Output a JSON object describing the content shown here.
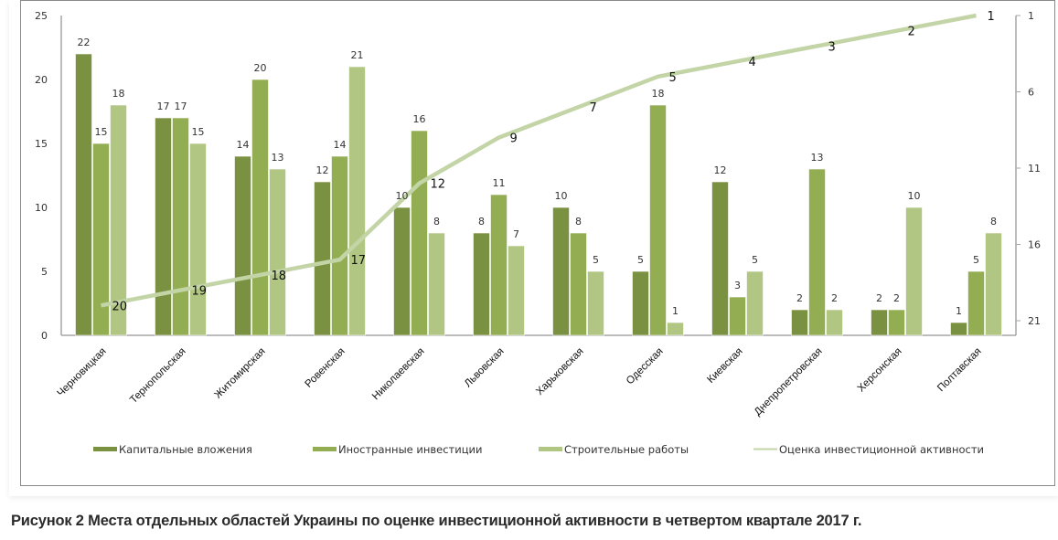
{
  "caption": "Рисунок 2 Места отдельных областей Украины по оценке инвестиционной активности в четвертом квартале 2017 г.",
  "colors": {
    "capital": "#7a9142",
    "foreign": "#93ae52",
    "construction": "#b0c682",
    "line": "#c3d4a6",
    "axis": "#a6a6a6"
  },
  "chart_data": {
    "type": "bar",
    "title": "",
    "categories": [
      "Черновицкая",
      "Тернопольская",
      "Житомирская",
      "Ровенская",
      "Николаевская",
      "Львовская",
      "Харьковская",
      "Одесская",
      "Киевская",
      "Днепропетровская",
      "Херсонская",
      "Полтавская"
    ],
    "series": [
      {
        "name": "Капитальные вложения",
        "type": "bar",
        "values": [
          22,
          17,
          14,
          12,
          10,
          8,
          10,
          5,
          12,
          2,
          2,
          1
        ]
      },
      {
        "name": "Иностранные инвестиции",
        "type": "bar",
        "values": [
          15,
          17,
          20,
          14,
          16,
          11,
          8,
          18,
          3,
          13,
          2,
          5
        ]
      },
      {
        "name": "Строительные работы",
        "type": "bar",
        "values": [
          18,
          15,
          13,
          21,
          8,
          7,
          5,
          1,
          5,
          2,
          10,
          8
        ]
      },
      {
        "name": "Оценка инвестиционной активности",
        "type": "line",
        "axis": "right",
        "values": [
          20,
          19,
          18,
          17,
          12,
          9,
          7,
          5,
          4,
          3,
          2,
          1
        ]
      }
    ],
    "y_left": {
      "ylim": [
        0,
        25
      ],
      "ticks": [
        "0",
        "5",
        "10",
        "15",
        "20",
        "25"
      ]
    },
    "y_right": {
      "ylim": [
        1,
        22
      ],
      "reversed": true,
      "ticks": [
        "1",
        "6",
        "11",
        "16",
        "21"
      ]
    },
    "xlabel": "",
    "ylabel": "",
    "grid": false,
    "legend": "bottom"
  }
}
